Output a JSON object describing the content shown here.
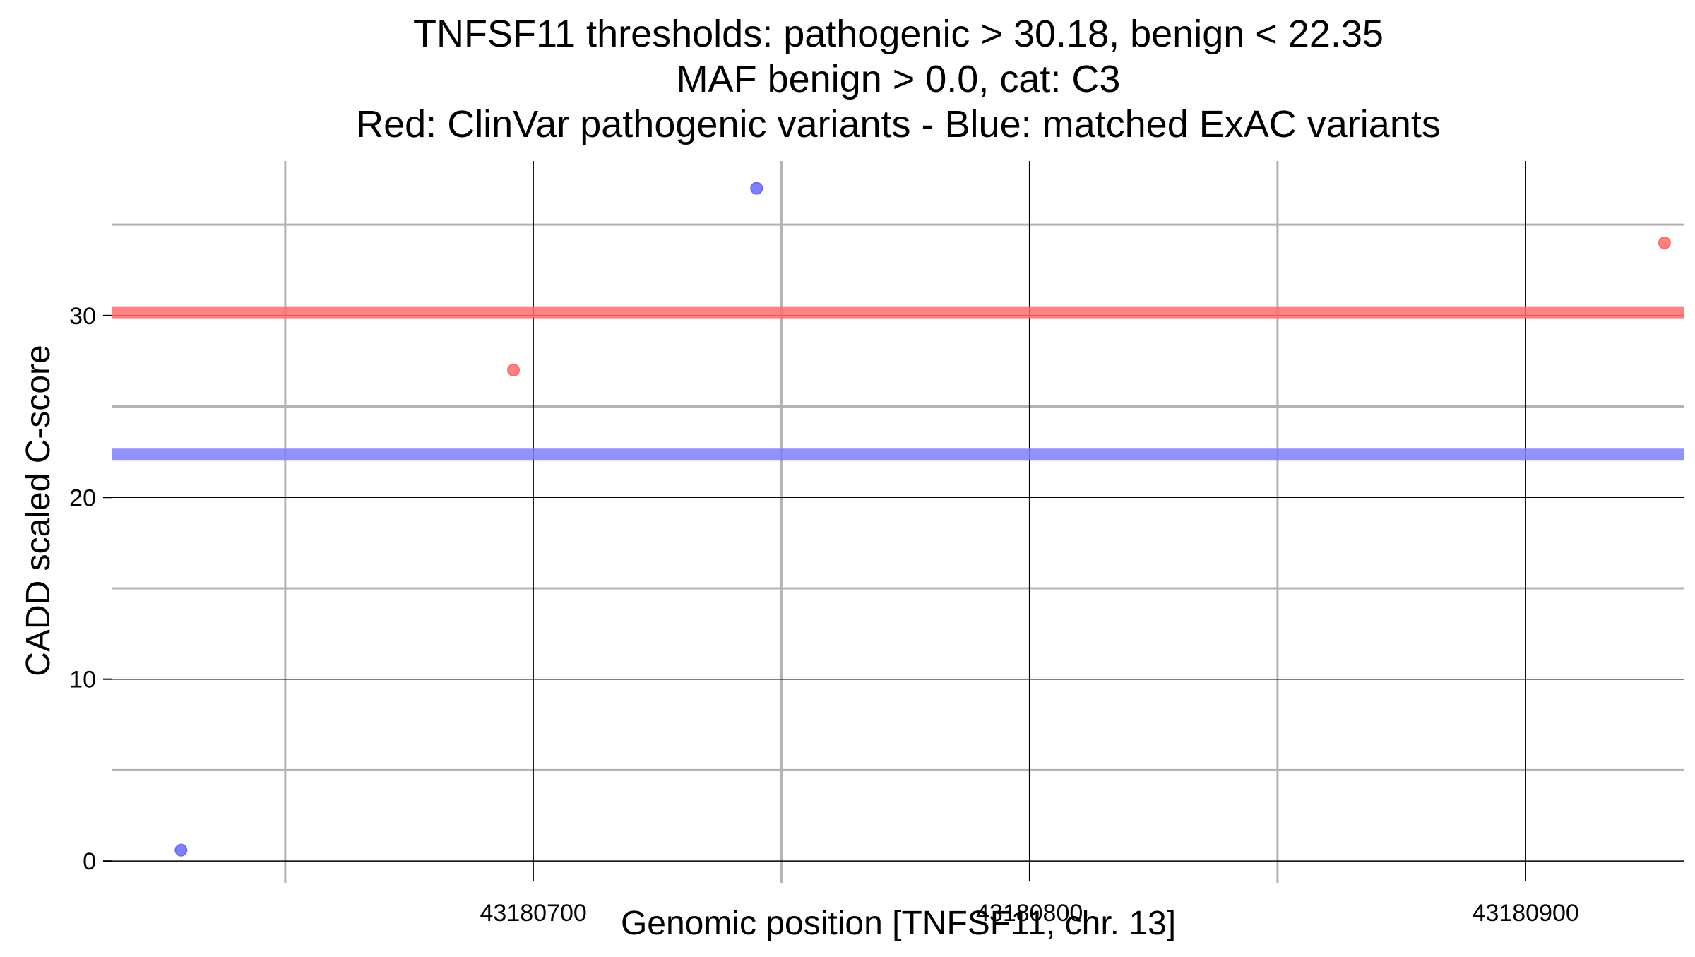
{
  "chart_data": {
    "type": "scatter",
    "title_lines": [
      "TNFSF11 thresholds: pathogenic > 30.18, benign < 22.35",
      "MAF benign > 0.0, cat: C3",
      "Red: ClinVar pathogenic variants - Blue: matched ExAC variants"
    ],
    "xlabel": "Genomic position [TNFSF11, chr. 13]",
    "ylabel": "CADD scaled C-score",
    "xlim": [
      43180615,
      43180932
    ],
    "ylim": [
      -0.5,
      38.5
    ],
    "x_major_ticks": [
      43180700,
      43180800,
      43180900
    ],
    "x_major_tick_labels": [
      "43180700",
      "43180800",
      "43180900"
    ],
    "x_minor_gridlines": [
      43180650,
      43180750,
      43180850
    ],
    "y_major_ticks": [
      0,
      10,
      20,
      30
    ],
    "y_major_tick_labels": [
      "0",
      "10",
      "20",
      "30"
    ],
    "y_minor_gridlines": [
      5,
      15,
      25,
      35
    ],
    "grid": true,
    "legend": "none",
    "thresholds": [
      {
        "name": "pathogenic",
        "value": 30.18,
        "color": "#ff6b6b"
      },
      {
        "name": "benign",
        "value": 22.35,
        "color": "#7f7fff"
      }
    ],
    "series": [
      {
        "color": "#ff6b6b",
        "x": [
          43180696,
          43180928
        ],
        "y": [
          27.0,
          34.0
        ]
      },
      {
        "color": "#6b6bff",
        "x": [
          43180629,
          43180745
        ],
        "y": [
          0.6,
          37.0
        ]
      }
    ],
    "colors": {
      "major_grid": "#000000",
      "minor_grid": "#b3b3b3",
      "pathogenic_point": "#ff6b6b",
      "benign_point": "#6b6bff"
    }
  }
}
